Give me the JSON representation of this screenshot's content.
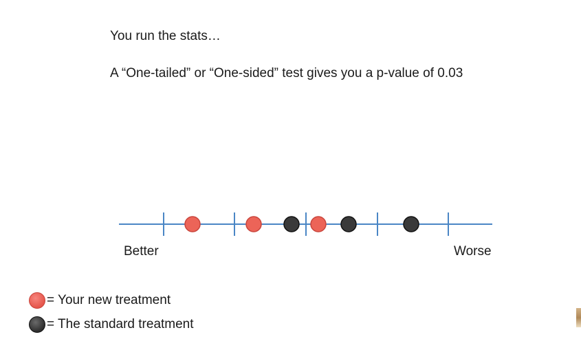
{
  "text": {
    "line1": "You run the stats…",
    "line2": "A “One-tailed” or “One-sided” test gives you a p-value of 0.03"
  },
  "axis": {
    "left_label": "Better",
    "right_label": "Worse",
    "line_color": "#4a86c5",
    "tick_count": 6
  },
  "points": [
    {
      "group": "new",
      "order": 1
    },
    {
      "group": "new",
      "order": 2
    },
    {
      "group": "standard",
      "order": 3
    },
    {
      "group": "new",
      "order": 4
    },
    {
      "group": "standard",
      "order": 5
    },
    {
      "group": "standard",
      "order": 6
    }
  ],
  "legend": {
    "new_label": "= Your new treatment",
    "standard_label": "= The standard treatment"
  },
  "colors": {
    "new_treatment": "#ec6458",
    "standard_treatment": "#3a3a3a"
  }
}
